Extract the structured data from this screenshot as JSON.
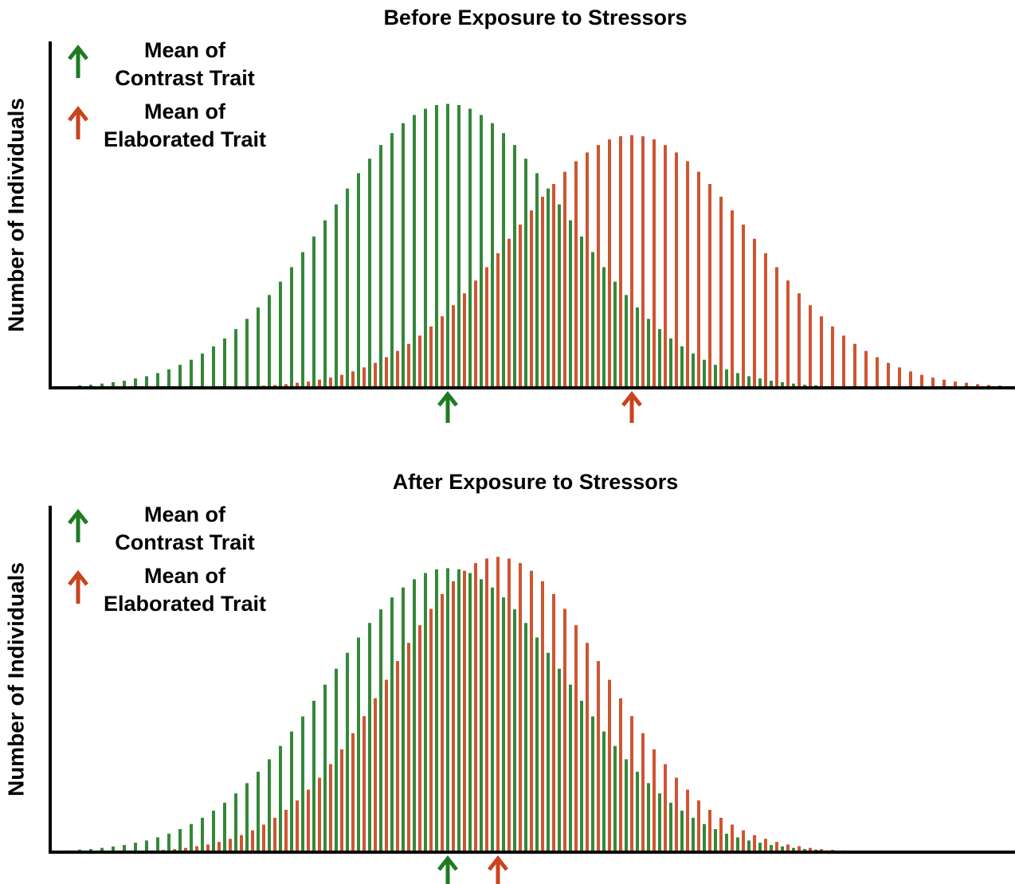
{
  "chart_data": [
    {
      "type": "bar",
      "title": "Before Exposure to Stressors",
      "y_label": "Number of Individuals",
      "ylim": [
        0,
        122
      ],
      "legend": "upper left",
      "series": [
        {
          "name": "Mean of\nContrast Trait",
          "color": "#1e7b22",
          "values": [
            0.5,
            0.6,
            0.9,
            1.1,
            1.5,
            2.0,
            2.5,
            3.3,
            4.1,
            5.2,
            6.5,
            8.1,
            9.9,
            12.1,
            14.6,
            17.4,
            20.7,
            24.3,
            28.3,
            32.7,
            37.4,
            42.5,
            47.8,
            53.3,
            59.0,
            64.6,
            70.2,
            75.6,
            80.7,
            85.5,
            89.7,
            93.2,
            96.1,
            98.3,
            99.6,
            100,
            99.6,
            98.3,
            96.1,
            93.2,
            89.7,
            85.5,
            80.7,
            75.6,
            70.2,
            64.6,
            59.0,
            53.3,
            47.8,
            42.5,
            37.4,
            32.7,
            28.3,
            24.3,
            20.7,
            17.4,
            14.6,
            12.1,
            9.9,
            8.1,
            6.5,
            5.2,
            4.1,
            3.3,
            2.5,
            2.0,
            1.5,
            1.1,
            0.9,
            0.6,
            0.5,
            0.4,
            0.3,
            0.2,
            0.1,
            0.1,
            0.1,
            0,
            0,
            0,
            0,
            0,
            0,
            0,
            0,
            0
          ]
        },
        {
          "name": "Mean of\nElaborated Trait",
          "color": "#c9431c",
          "values": [
            0,
            0,
            0,
            0,
            0,
            0,
            0,
            0,
            0,
            0,
            0.1,
            0.1,
            0.1,
            0.2,
            0.2,
            0.3,
            0.4,
            0.6,
            0.8,
            1.0,
            1.3,
            1.8,
            2.2,
            2.9,
            3.6,
            4.6,
            5.8,
            7.2,
            8.8,
            10.8,
            13.0,
            15.5,
            18.4,
            21.6,
            25.2,
            29.1,
            33.3,
            37.8,
            42.5,
            47.4,
            52.5,
            57.5,
            62.5,
            67.3,
            71.8,
            76.1,
            79.8,
            82.9,
            85.5,
            87.5,
            88.6,
            89,
            88.6,
            87.5,
            85.5,
            82.9,
            79.8,
            76.1,
            71.8,
            67.3,
            62.5,
            57.5,
            52.5,
            47.4,
            42.5,
            37.8,
            33.3,
            29.1,
            25.2,
            21.6,
            18.4,
            15.5,
            13.0,
            10.8,
            8.8,
            7.2,
            5.8,
            4.6,
            3.6,
            2.9,
            2.2,
            1.8,
            1.3,
            1.0,
            0.8,
            0.6
          ]
        }
      ]
    },
    {
      "type": "bar",
      "title": "After Exposure to Stressors",
      "y_label": "Number of Individuals",
      "ylim": [
        0,
        122
      ],
      "legend": "upper left",
      "series": [
        {
          "name": "Mean of\nContrast Trait",
          "color": "#1e7b22",
          "values": [
            0.5,
            0.6,
            0.9,
            1.1,
            1.5,
            2.0,
            2.5,
            3.3,
            4.1,
            5.2,
            6.5,
            8.1,
            9.9,
            12.1,
            14.6,
            17.4,
            20.7,
            24.3,
            28.3,
            32.7,
            37.4,
            42.5,
            47.8,
            53.3,
            59.0,
            64.6,
            70.2,
            75.6,
            80.7,
            85.5,
            89.7,
            93.2,
            96.1,
            98.3,
            99.6,
            100,
            99.6,
            98.3,
            96.1,
            93.2,
            89.7,
            85.5,
            80.7,
            75.6,
            70.2,
            64.6,
            59.0,
            53.3,
            47.8,
            42.5,
            37.4,
            32.7,
            28.3,
            24.3,
            20.7,
            17.4,
            14.6,
            12.1,
            9.9,
            8.1,
            6.5,
            5.2,
            4.1,
            3.3,
            2.5,
            2.0,
            1.5,
            1.1,
            0.9,
            0.6,
            0.5,
            0.4,
            0.3,
            0.2,
            0.1,
            0.1,
            0.1,
            0,
            0,
            0,
            0,
            0,
            0,
            0,
            0,
            0
          ]
        },
        {
          "name": "Mean of\nElaborated Trait",
          "color": "#c9431c",
          "values": [
            0,
            0,
            0.1,
            0.1,
            0.1,
            0.2,
            0.3,
            0.4,
            0.6,
            0.8,
            1.1,
            1.5,
            2.1,
            2.7,
            3.6,
            4.7,
            6.0,
            7.7,
            9.7,
            12.1,
            14.9,
            18.2,
            22.0,
            26.2,
            31.0,
            36.2,
            41.9,
            47.9,
            54.2,
            60.7,
            67.3,
            73.7,
            79.9,
            85.7,
            90.9,
            95.4,
            99.1,
            101.8,
            103.4,
            104,
            103.4,
            101.8,
            99.1,
            95.4,
            90.9,
            85.7,
            79.9,
            73.7,
            67.3,
            60.7,
            54.2,
            47.9,
            41.9,
            36.2,
            31.0,
            26.2,
            22.0,
            18.2,
            14.9,
            12.1,
            9.7,
            7.7,
            6.0,
            4.7,
            3.6,
            2.7,
            2.1,
            1.5,
            1.1,
            0.8,
            0.6,
            0.4,
            0.3,
            0.2,
            0.1,
            0.1,
            0.1,
            0,
            0,
            0,
            0,
            0,
            0,
            0,
            0,
            0
          ]
        }
      ]
    }
  ]
}
